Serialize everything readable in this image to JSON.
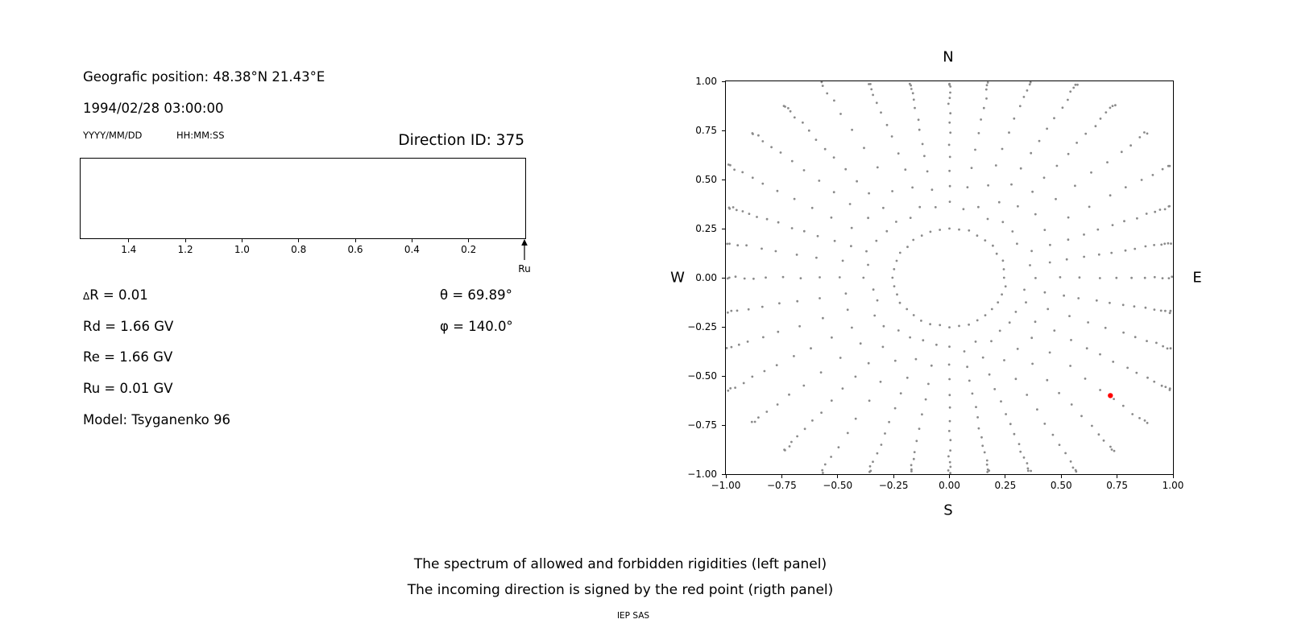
{
  "figure": {
    "background": "#ffffff",
    "text_color": "#000000"
  },
  "left_panel": {
    "position_label": "Geografic position: 48.38°N 21.43°E",
    "datetime": "1994/02/28 03:00:00",
    "date_format_label": "YYYY/MM/DD",
    "time_format_label": "HH:MM:SS",
    "direction_id_label": "Direction ID: 375",
    "params": [
      {
        "sym": "Δ",
        "text": "R = 0.01"
      },
      {
        "sym": "",
        "text": "Rd = 1.66 GV"
      },
      {
        "sym": "",
        "text": "Re = 1.66 GV"
      },
      {
        "sym": "",
        "text": "Ru = 0.01 GV"
      },
      {
        "sym": "",
        "text": "Model: Tsyganenko 96"
      }
    ],
    "angles": [
      "θ = 69.89°",
      "φ = 140.0°"
    ]
  },
  "captions": {
    "line1": "The spectrum of allowed and forbidden rigidities (left panel)",
    "line2": "The incoming direction is signed by the red point (rigth panel)",
    "credit": "IEP SAS"
  },
  "chart_data": [
    {
      "name": "rigidity-spectrum",
      "type": "line",
      "title": "Direction ID: 375",
      "xlim": [
        1.57,
        0.0
      ],
      "xticks": [
        1.4,
        1.2,
        1.0,
        0.8,
        0.6,
        0.4,
        0.2
      ],
      "tick_decimals": 1,
      "series": [],
      "empty": true,
      "arrow_marker": {
        "x": 0.0,
        "label": "Ru",
        "direction": "up"
      }
    },
    {
      "name": "incoming-direction-sky-map",
      "type": "scatter",
      "xlim": [
        -1.0,
        1.0
      ],
      "ylim": [
        -1.0,
        1.0
      ],
      "xticks": [
        -1.0,
        -0.75,
        -0.5,
        -0.25,
        0.0,
        0.25,
        0.5,
        0.75,
        1.0
      ],
      "yticks": [
        -1.0,
        -0.75,
        -0.5,
        -0.25,
        0.0,
        0.25,
        0.5,
        0.75,
        1.0
      ],
      "tick_decimals": 2,
      "compass": {
        "top": "N",
        "bottom": "S",
        "left": "W",
        "right": "E"
      },
      "grid_dots": {
        "color": "#8a8a8a",
        "marker_radius_px": 1.4,
        "spokes": {
          "count": 36,
          "angle_step_deg": 10,
          "r_inner": 0.36,
          "r_outer_axis": 0.99,
          "r_outer_max": 1.15,
          "dots_min": 10,
          "dots_max": 15
        },
        "inner_ring": {
          "radius": 0.25,
          "count": 36
        }
      },
      "red_point": {
        "x": 0.72,
        "y": -0.6,
        "color": "#ff0000"
      }
    }
  ]
}
